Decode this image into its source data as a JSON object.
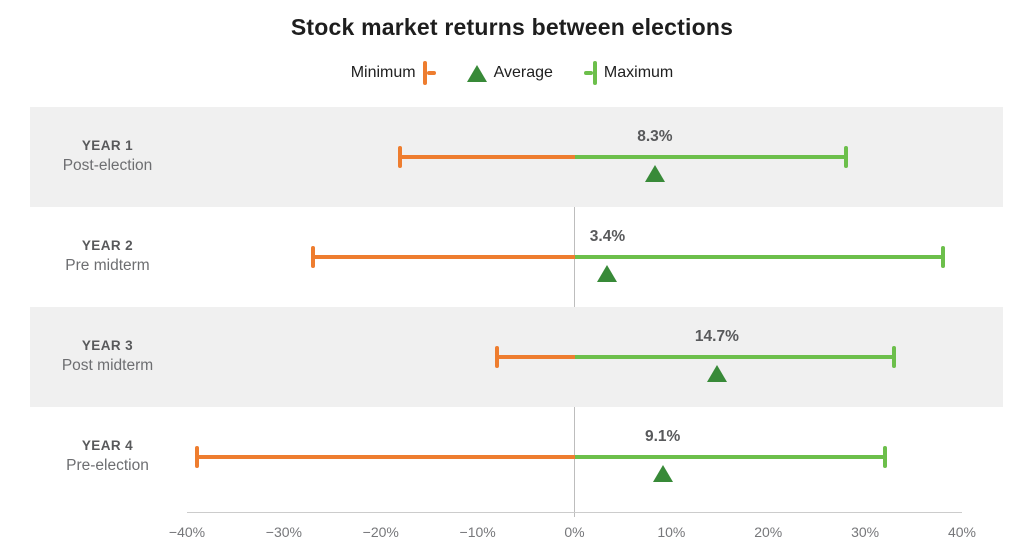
{
  "title": "Stock market returns between elections",
  "legend": {
    "items": [
      {
        "label": "Minimum",
        "marker": "min-cap-icon"
      },
      {
        "label": "Average",
        "marker": "triangle-icon"
      },
      {
        "label": "Maximum",
        "marker": "max-cap-icon"
      }
    ]
  },
  "axis": {
    "min": -40,
    "max": 40,
    "ticks": [
      {
        "label": "−40%",
        "value": -40
      },
      {
        "label": "−30%",
        "value": -30
      },
      {
        "label": "−20%",
        "value": -20
      },
      {
        "label": "−10%",
        "value": -10
      },
      {
        "label": "0%",
        "value": 0
      },
      {
        "label": "10%",
        "value": 10
      },
      {
        "label": "20%",
        "value": 20
      },
      {
        "label": "30%",
        "value": 30
      },
      {
        "label": "40%",
        "value": 40
      }
    ]
  },
  "rows": [
    {
      "year": "YEAR 1",
      "phase": "Post-election",
      "min": -18,
      "avg": 8.3,
      "max": 28,
      "avg_label": "8.3%"
    },
    {
      "year": "YEAR 2",
      "phase": "Pre midterm",
      "min": -27,
      "avg": 3.4,
      "max": 38,
      "avg_label": "3.4%"
    },
    {
      "year": "YEAR 3",
      "phase": "Post midterm",
      "min": -8,
      "avg": 14.7,
      "max": 33,
      "avg_label": "14.7%"
    },
    {
      "year": "YEAR 4",
      "phase": "Pre-election",
      "min": -39,
      "avg": 9.1,
      "max": 32,
      "avg_label": "9.1%"
    }
  ],
  "colors": {
    "minimum": "#ee7d2f",
    "maximum": "#6cbf4b",
    "average": "#388a38",
    "band": "#f0f0f0",
    "zero_line": "#bdbdbd",
    "axis_line": "#cccccc",
    "title_text": "#1e1e1e",
    "label_text": "#58595b",
    "muted_text": "#6d6e71"
  },
  "chart_data": {
    "type": "bar",
    "subtype": "horizontal-range-dumbbell",
    "title": "Stock market returns between elections",
    "categories": [
      "YEAR 1 Post-election",
      "YEAR 2 Pre midterm",
      "YEAR 3 Post midterm",
      "YEAR 4 Pre-election"
    ],
    "series": [
      {
        "name": "Minimum",
        "values": [
          -18,
          -27,
          -8,
          -39
        ]
      },
      {
        "name": "Average",
        "values": [
          8.3,
          3.4,
          14.7,
          9.1
        ]
      },
      {
        "name": "Maximum",
        "values": [
          28,
          38,
          33,
          32
        ]
      }
    ],
    "value_labels": [
      "8.3%",
      "3.4%",
      "14.7%",
      "9.1%"
    ],
    "xlabel": "",
    "ylabel": "",
    "xlim": [
      -40,
      40
    ],
    "x_ticks": [
      "−40%",
      "−30%",
      "−20%",
      "−10%",
      "0%",
      "10%",
      "20%",
      "30%",
      "40%"
    ],
    "grid": false,
    "legend_position": "top",
    "orientation": "horizontal",
    "banded_rows": [
      0,
      2
    ]
  }
}
